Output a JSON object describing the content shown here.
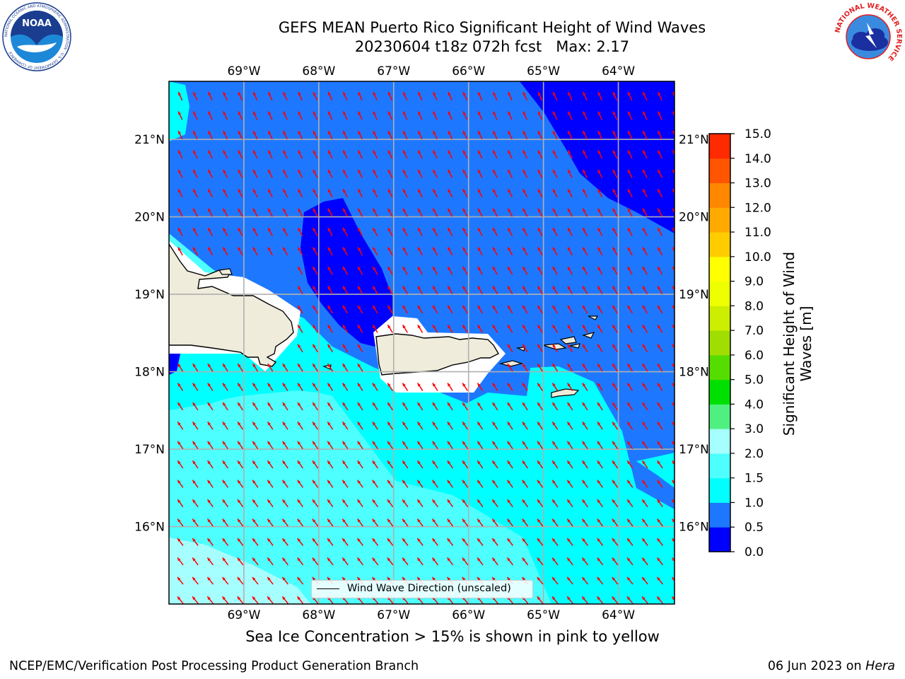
{
  "header": {
    "title_line1": "GEFS MEAN Puerto Rico Significant Height of Wind Waves",
    "title_line2": "20230604 t18z 072h fcst   Max: 2.17"
  },
  "map": {
    "lon_labels": [
      "69°W",
      "68°W",
      "67°W",
      "66°W",
      "65°W",
      "64°W"
    ],
    "lat_labels": [
      "21°N",
      "20°N",
      "19°N",
      "18°N",
      "17°N",
      "16°N"
    ],
    "lon_range": [
      -70.0,
      -63.25
    ],
    "lat_range": [
      15.0,
      21.75
    ],
    "legend_label": "Wind Wave Direction (unscaled)",
    "arrow_color": "#ff0000",
    "land_color": "#efecdc"
  },
  "colorbar": {
    "label": "Significant Height of Wind Waves [m]",
    "tick_labels": [
      "0.0",
      "0.5",
      "1.0",
      "1.5",
      "2.0",
      "3.0",
      "4.0",
      "5.0",
      "6.0",
      "7.0",
      "8.0",
      "9.0",
      "10.0",
      "11.0",
      "12.0",
      "13.0",
      "14.0",
      "15.0"
    ],
    "colors": [
      "#0000ff",
      "#1e78ff",
      "#00ffff",
      "#4dffff",
      "#a6ffff",
      "#50f080",
      "#00e000",
      "#55dd00",
      "#a0dd00",
      "#ccee00",
      "#eeff00",
      "#ffff00",
      "#ffcc00",
      "#ffaa00",
      "#ff8800",
      "#ff5500",
      "#ff2a00",
      "#ff0000"
    ]
  },
  "caption": "Sea Ice Concentration > 15% is shown in pink to yellow",
  "footer": {
    "left": "NCEP/EMC/Verification Post Processing Product Generation Branch",
    "date": "06 Jun 2023 on",
    "host": "Hera"
  },
  "logos": {
    "noaa_text": "NOAA",
    "noaa_ring": "NATIONAL OCEANIC AND ATMOSPHERIC ADMINISTRATION · U.S. DEPARTMENT OF COMMERCE",
    "nws_ring": "NATIONAL WEATHER SERVICE"
  }
}
